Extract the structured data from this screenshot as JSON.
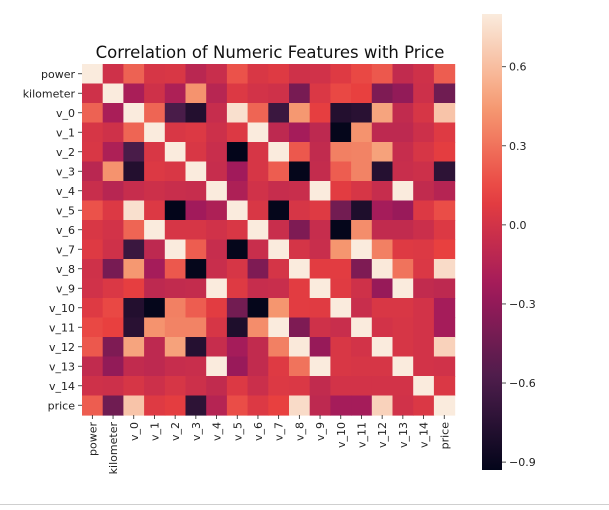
{
  "chart_data": {
    "type": "heatmap",
    "title": "Correlation of Numeric Features with Price",
    "labels": [
      "power",
      "kilometer",
      "v_0",
      "v_1",
      "v_2",
      "v_3",
      "v_4",
      "v_5",
      "v_6",
      "v_7",
      "v_8",
      "v_9",
      "v_10",
      "v_11",
      "v_12",
      "v_13",
      "v_14",
      "price"
    ],
    "matrix": [
      [
        1.0,
        -0.02,
        0.24,
        0.02,
        0.03,
        -0.12,
        -0.05,
        0.18,
        0.03,
        0.06,
        -0.02,
        -0.01,
        0.06,
        0.14,
        0.2,
        -0.08,
        -0.02,
        0.22
      ],
      [
        -0.02,
        1.0,
        -0.2,
        -0.02,
        -0.18,
        0.42,
        -0.13,
        0.05,
        0.0,
        -0.02,
        -0.41,
        0.04,
        0.14,
        0.11,
        -0.38,
        -0.3,
        -0.03,
        -0.44
      ],
      [
        0.24,
        -0.2,
        1.0,
        0.25,
        -0.6,
        -0.78,
        -0.06,
        0.75,
        0.25,
        -0.67,
        0.44,
        0.1,
        -0.78,
        -0.75,
        0.49,
        -0.08,
        0.02,
        0.63
      ],
      [
        0.02,
        -0.02,
        0.25,
        1.0,
        0.03,
        0.05,
        -0.03,
        0.05,
        0.81,
        -0.1,
        -0.22,
        -0.1,
        -0.92,
        0.42,
        -0.1,
        -0.1,
        -0.03,
        0.06
      ],
      [
        0.03,
        -0.18,
        -0.6,
        0.03,
        1.0,
        0.03,
        -0.05,
        -0.93,
        0.02,
        0.8,
        0.2,
        -0.08,
        0.35,
        0.36,
        0.48,
        -0.06,
        0.02,
        0.09
      ],
      [
        -0.12,
        0.42,
        -0.78,
        0.05,
        0.03,
        1.0,
        -0.06,
        -0.24,
        0.02,
        0.22,
        -0.92,
        -0.07,
        0.22,
        0.36,
        -0.77,
        -0.05,
        -0.03,
        -0.73
      ],
      [
        -0.05,
        -0.13,
        -0.06,
        -0.03,
        -0.05,
        -0.06,
        1.0,
        -0.18,
        -0.01,
        -0.06,
        -0.05,
        0.86,
        0.08,
        0.02,
        -0.06,
        0.83,
        -0.08,
        -0.14
      ],
      [
        0.18,
        0.05,
        0.75,
        0.05,
        -0.93,
        -0.24,
        -0.18,
        1.0,
        0.03,
        -0.92,
        0.02,
        0.06,
        -0.43,
        -0.8,
        -0.22,
        -0.27,
        0.05,
        0.16
      ],
      [
        0.03,
        0.0,
        0.25,
        0.81,
        0.02,
        0.02,
        -0.01,
        0.03,
        1.0,
        -0.05,
        -0.38,
        -0.06,
        -0.92,
        0.4,
        -0.08,
        -0.08,
        -0.04,
        0.05
      ],
      [
        0.06,
        -0.02,
        -0.67,
        -0.1,
        0.8,
        0.22,
        -0.06,
        -0.92,
        -0.05,
        1.0,
        0.01,
        -0.05,
        0.43,
        0.81,
        0.35,
        0.06,
        0.05,
        0.11
      ],
      [
        -0.02,
        -0.41,
        0.44,
        -0.22,
        0.2,
        -0.92,
        -0.05,
        0.02,
        -0.38,
        0.01,
        1.0,
        0.08,
        0.08,
        -0.38,
        0.79,
        0.3,
        0.04,
        0.73
      ],
      [
        -0.01,
        0.04,
        0.1,
        -0.1,
        -0.08,
        -0.07,
        0.86,
        0.06,
        -0.06,
        -0.05,
        0.08,
        1.0,
        0.07,
        -0.02,
        -0.28,
        0.88,
        -0.08,
        -0.1
      ],
      [
        0.06,
        0.14,
        -0.78,
        -0.92,
        0.35,
        0.22,
        0.08,
        -0.43,
        -0.92,
        0.43,
        0.08,
        0.07,
        1.0,
        -0.05,
        0.03,
        0.03,
        0.0,
        -0.22
      ],
      [
        0.14,
        0.11,
        -0.75,
        0.42,
        0.36,
        0.36,
        0.02,
        -0.8,
        0.4,
        0.81,
        -0.38,
        -0.02,
        -0.05,
        1.0,
        0.0,
        0.02,
        0.0,
        -0.22
      ],
      [
        0.2,
        -0.38,
        0.49,
        -0.1,
        0.48,
        -0.77,
        -0.06,
        -0.22,
        -0.08,
        0.35,
        0.79,
        -0.28,
        0.03,
        0.0,
        1.0,
        0.02,
        0.0,
        0.69
      ],
      [
        -0.08,
        -0.3,
        -0.08,
        -0.1,
        -0.06,
        -0.05,
        0.83,
        -0.27,
        -0.08,
        0.06,
        0.3,
        0.88,
        0.03,
        0.02,
        0.02,
        1.0,
        0.0,
        -0.01
      ],
      [
        -0.02,
        -0.03,
        0.02,
        -0.03,
        0.02,
        -0.03,
        -0.08,
        0.05,
        -0.04,
        0.05,
        0.04,
        -0.08,
        0.0,
        0.0,
        0.0,
        0.0,
        1.0,
        0.04
      ],
      [
        0.22,
        -0.44,
        0.63,
        0.06,
        0.09,
        -0.73,
        -0.14,
        0.16,
        0.05,
        0.11,
        0.73,
        -0.1,
        -0.22,
        -0.22,
        0.69,
        -0.01,
        0.04,
        1.0
      ]
    ],
    "colorbar": {
      "ticks": [
        0.6,
        0.3,
        0.0,
        -0.3,
        -0.6,
        -0.9
      ],
      "tick_labels": [
        "0.6",
        "0.3",
        "0.0",
        "−0.3",
        "−0.6",
        "−0.9"
      ],
      "range": [
        -0.93,
        0.8
      ]
    },
    "grid": false,
    "legend": "right"
  },
  "colors": {
    "stops": [
      "#03051a",
      "#4c1d4b",
      "#a11a5b",
      "#e83f3f",
      "#f69c73",
      "#faebdd"
    ],
    "text": "#222222"
  }
}
